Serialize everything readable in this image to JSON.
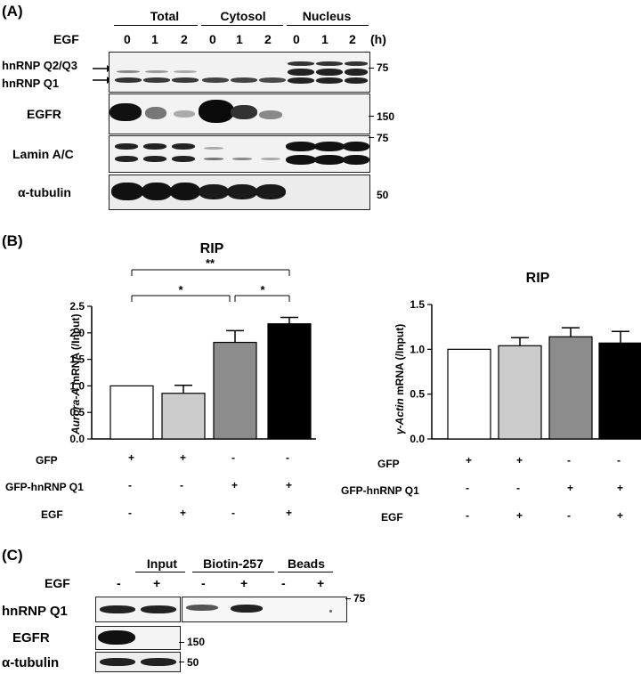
{
  "panelA": {
    "label": "(A)",
    "groups": [
      "Total",
      "Cytosol",
      "Nucleus"
    ],
    "treatment_label": "EGF",
    "times": [
      "0",
      "1",
      "2",
      "0",
      "1",
      "2",
      "0",
      "1",
      "2"
    ],
    "time_unit": "(h)",
    "rows": [
      {
        "label_top": "hnRNP Q2/Q3",
        "label_bottom": "hnRNP Q1",
        "marker": "75"
      },
      {
        "label": "EGFR",
        "marker": "150"
      },
      {
        "label": "Lamin A/C",
        "marker": "75"
      },
      {
        "label": "α-tubulin",
        "marker": "50"
      }
    ]
  },
  "panelB": {
    "label": "(B)",
    "conditions": [
      {
        "label": "GFP",
        "values": [
          "+",
          "+",
          "-",
          "-"
        ]
      },
      {
        "label": "GFP-hnRNP Q1",
        "values": [
          "-",
          "-",
          "+",
          "+"
        ]
      },
      {
        "label": "EGF",
        "values": [
          "-",
          "+",
          "-",
          "+"
        ]
      }
    ],
    "significance": [
      "**",
      "*",
      "*"
    ],
    "colors": [
      "#ffffff",
      "#cccccc",
      "#8c8c8c",
      "#000000"
    ]
  },
  "chart_data": [
    {
      "type": "bar",
      "title": "RIP",
      "ylabel": "Aurora-A mRNA (/Input)",
      "ylabel_italic": "Aurora-A",
      "ylabel_rest": " mRNA (/Input)",
      "categories": [
        "GFP",
        "GFP + EGF",
        "GFP-hnRNP Q1",
        "GFP-hnRNP Q1 + EGF"
      ],
      "values": [
        1.0,
        0.86,
        1.82,
        2.17
      ],
      "errors": [
        0,
        0.15,
        0.22,
        0.12
      ],
      "ylim": [
        0,
        2.5
      ],
      "yticks": [
        "0.0",
        "0.5",
        "1.0",
        "1.5",
        "2.0",
        "2.5"
      ],
      "grid": false
    },
    {
      "type": "bar",
      "title": "RIP",
      "ylabel": "γ-Actin mRNA (/Input)",
      "ylabel_italic": "γ-Actin",
      "ylabel_rest": " mRNA (/Input)",
      "categories": [
        "GFP",
        "GFP + EGF",
        "GFP-hnRNP Q1",
        "GFP-hnRNP Q1 + EGF"
      ],
      "values": [
        1.0,
        1.04,
        1.14,
        1.07
      ],
      "errors": [
        0,
        0.09,
        0.1,
        0.13
      ],
      "ylim": [
        0,
        1.5
      ],
      "yticks": [
        "0.0",
        "0.5",
        "1.0",
        "1.5"
      ],
      "grid": false
    }
  ],
  "panelC": {
    "label": "(C)",
    "groups": [
      "Input",
      "Biotin-257",
      "Beads"
    ],
    "treatment_label": "EGF",
    "signs": [
      "-",
      "+",
      "-",
      "+",
      "-",
      "+"
    ],
    "rows": [
      {
        "label": "hnRNP Q1",
        "marker": "75"
      },
      {
        "label": "EGFR",
        "marker": "150"
      },
      {
        "label": "α-tubulin",
        "marker": "50"
      }
    ]
  }
}
